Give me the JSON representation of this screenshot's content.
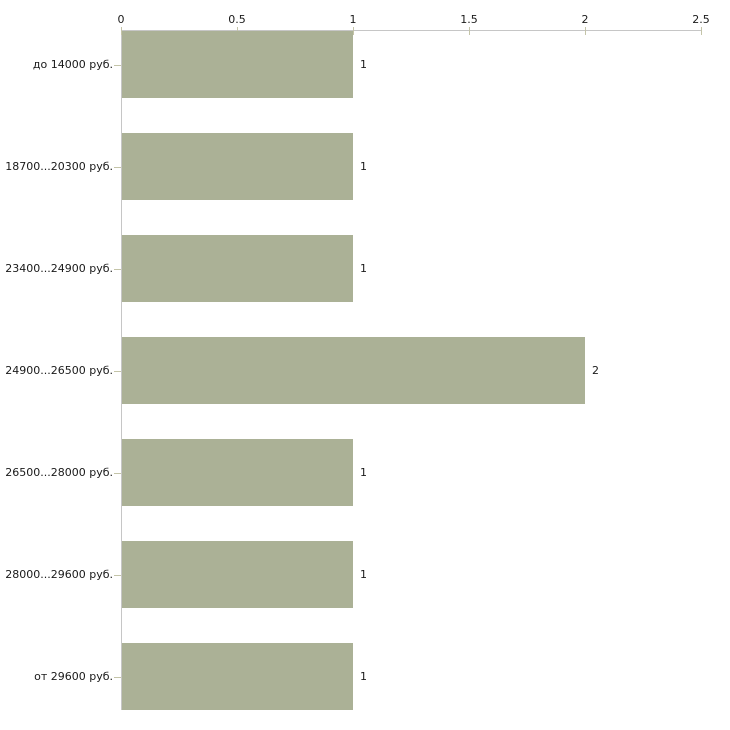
{
  "page": {
    "background_color": "#ffffff"
  },
  "chart_data": {
    "type": "bar",
    "orientation": "horizontal",
    "title": "",
    "xlabel": "",
    "ylabel": "",
    "categories": [
      "до 14000 руб.",
      "18700...20300 руб.",
      "23400...24900 руб.",
      "24900...26500 руб.",
      "26500...28000 руб.",
      "28000...29600 руб.",
      "от 29600 руб."
    ],
    "values": [
      1,
      1,
      1,
      2,
      1,
      1,
      1
    ],
    "value_labels": [
      "1",
      "1",
      "1",
      "2",
      "1",
      "1",
      "1"
    ],
    "x_ticks": [
      0,
      0.5,
      1,
      1.5,
      2,
      2.5
    ],
    "x_tick_labels": [
      "0",
      "0.5",
      "1",
      "1.5",
      "2",
      "2.5"
    ],
    "xlim": [
      0,
      2.5
    ],
    "grid": false,
    "legend": false,
    "x_axis_position": "top",
    "y_axis_position": "left",
    "style": {
      "bar_color": "#abb196",
      "axis_line_color": "#c6c6c6",
      "tick_mark_color": "#c4c4a8",
      "text_color": "#1a1a1a",
      "background_color": "#ffffff"
    }
  }
}
